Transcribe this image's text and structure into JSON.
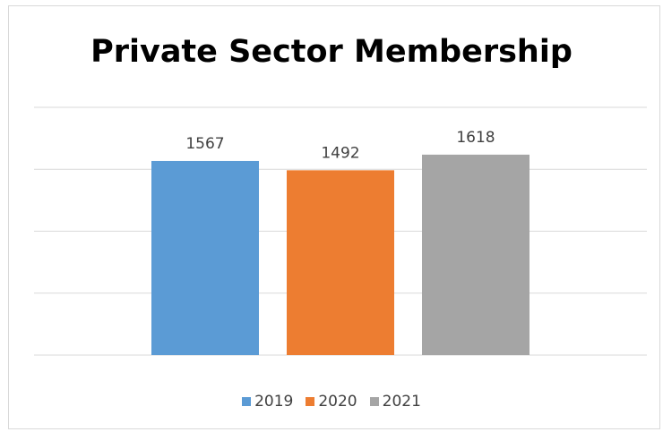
{
  "chart_data": {
    "type": "bar",
    "title": "Private Sector Membership",
    "xlabel": "",
    "ylabel": "",
    "categories": [
      "2019",
      "2020",
      "2021"
    ],
    "series": [
      {
        "name": "2019",
        "value": 1567,
        "color": "#5b9bd5"
      },
      {
        "name": "2020",
        "value": 1492,
        "color": "#ed7d31"
      },
      {
        "name": "2021",
        "value": 1618,
        "color": "#a5a5a5"
      }
    ],
    "ylim": [
      0,
      2000
    ],
    "grid": true,
    "legend_position": "bottom"
  }
}
